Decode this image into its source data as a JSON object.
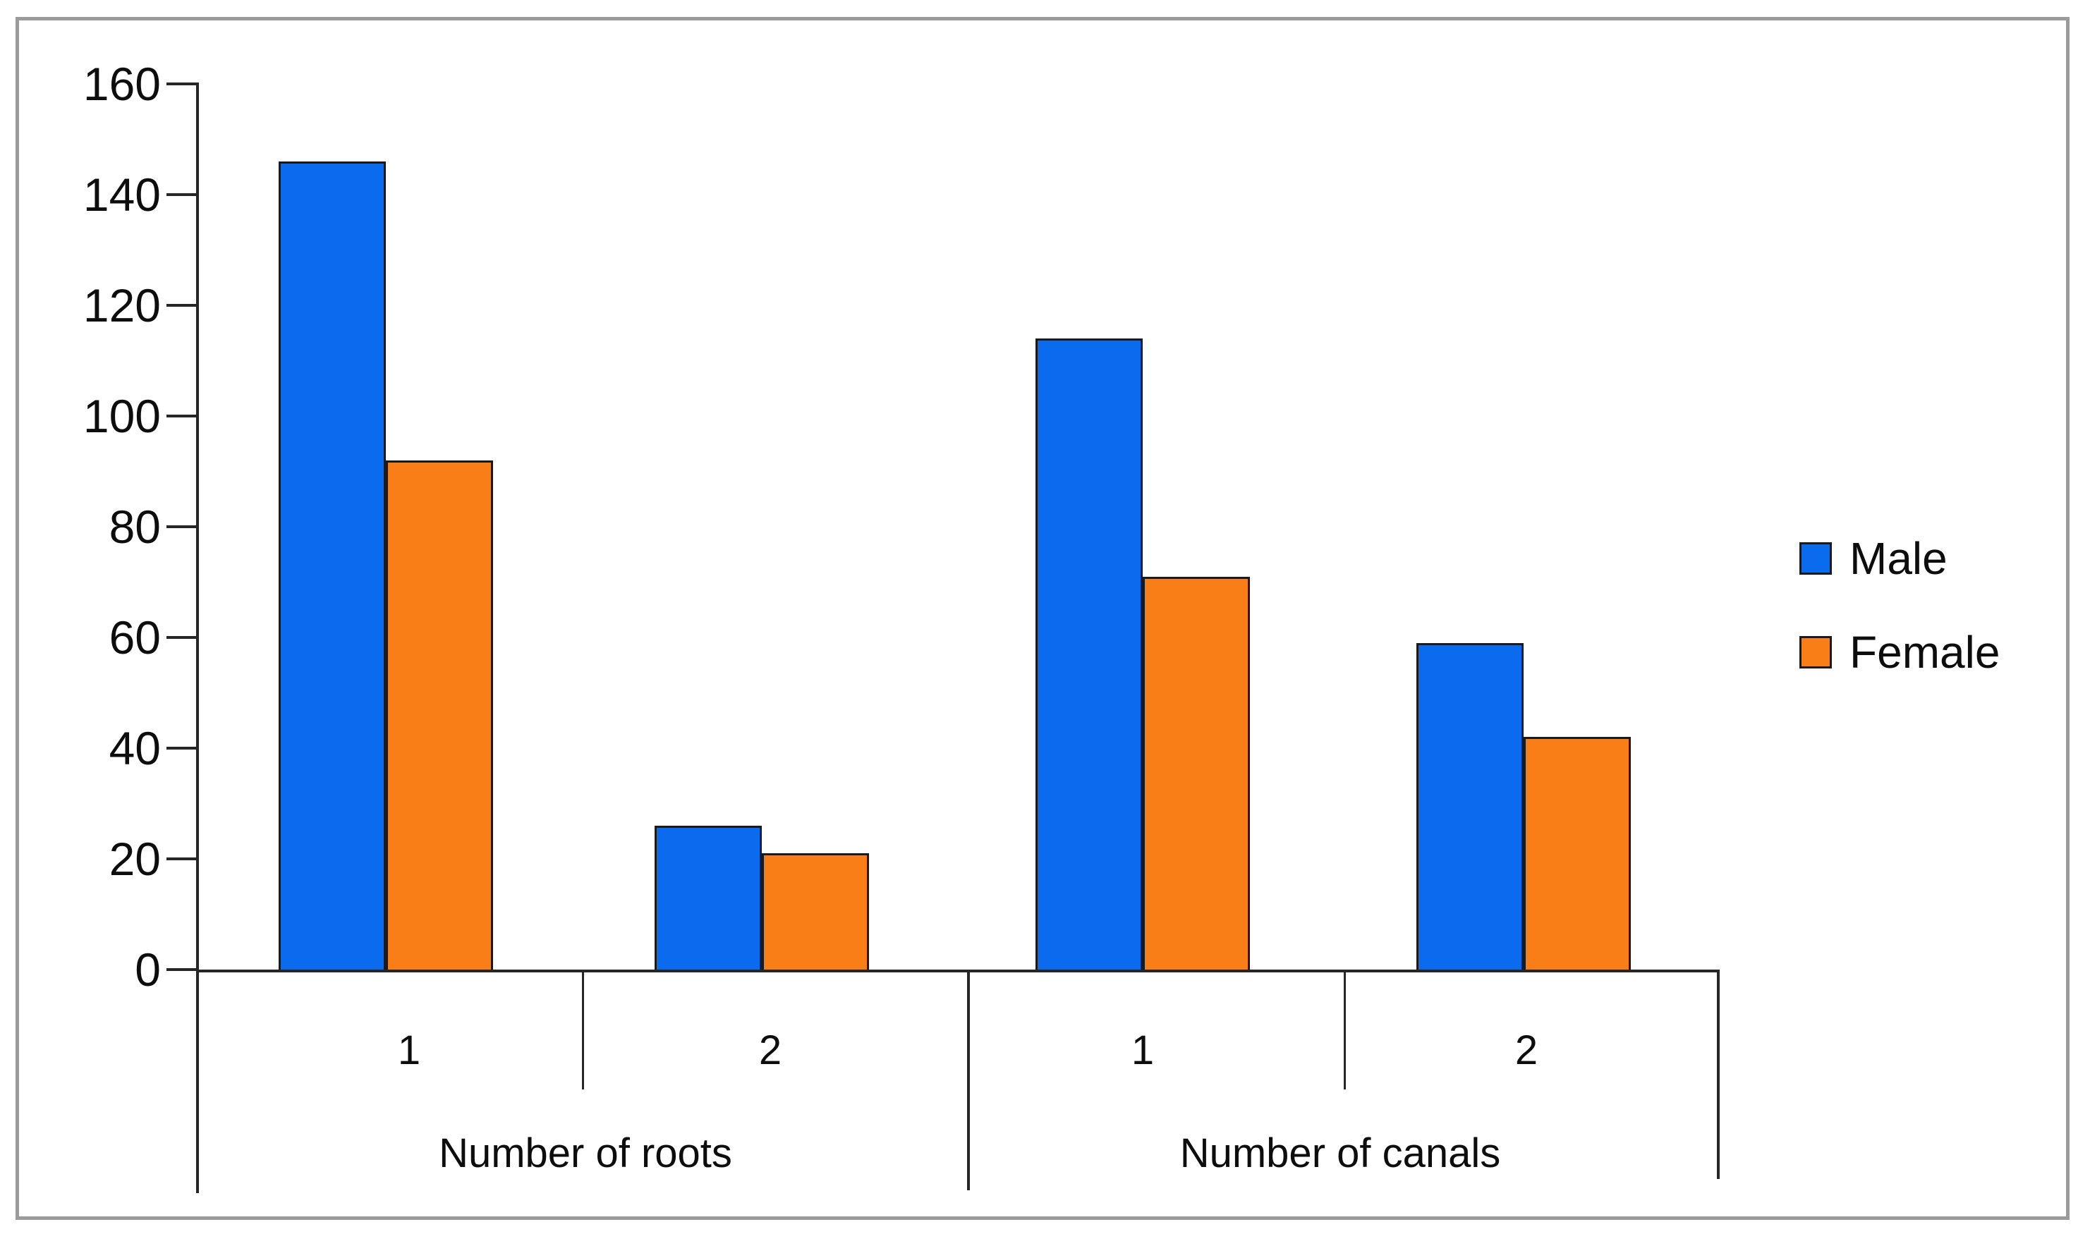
{
  "figure": {
    "background_color": "#ffffff",
    "border_color": "#9b9b9b"
  },
  "legend": {
    "items": [
      {
        "label": "Male",
        "color": "#0a6bee"
      },
      {
        "label": "Female",
        "color": "#f97e17"
      }
    ]
  },
  "chart_data": {
    "type": "bar",
    "title": "",
    "xlabel": "",
    "ylabel": "",
    "ylim": [
      0,
      160
    ],
    "yticks": [
      0,
      20,
      40,
      60,
      80,
      100,
      120,
      140,
      160
    ],
    "grid": false,
    "legend_position": "right",
    "bar_outline_color": "#1a1a1a",
    "groups": [
      {
        "label": "Number of roots",
        "categories": [
          "1",
          "2"
        ]
      },
      {
        "label": "Number of canals",
        "categories": [
          "1",
          "2"
        ]
      }
    ],
    "categories": [
      "1",
      "2",
      "1",
      "2"
    ],
    "series": [
      {
        "name": "Male",
        "color": "#0a6bee",
        "values": [
          146,
          26,
          114,
          59
        ]
      },
      {
        "name": "Female",
        "color": "#f97e17",
        "values": [
          92,
          21,
          71,
          42
        ]
      }
    ]
  }
}
